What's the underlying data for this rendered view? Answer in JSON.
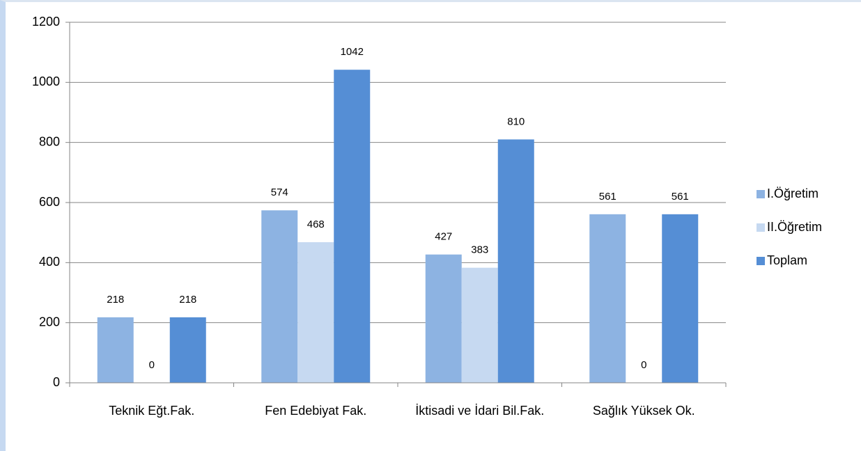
{
  "chart_data": {
    "type": "bar",
    "categories": [
      "Teknik Eğt.Fak.",
      "Fen Edebiyat Fak.",
      "İktisadi ve İdari Bil.Fak.",
      "Sağlık Yüksek Ok."
    ],
    "series": [
      {
        "name": "I.Öğretim",
        "color": "#8db3e2",
        "values": [
          218,
          574,
          427,
          561
        ]
      },
      {
        "name": "II.Öğretim",
        "color": "#c6d9f1",
        "values": [
          0,
          468,
          383,
          0
        ]
      },
      {
        "name": "Toplam",
        "color": "#558ed5",
        "values": [
          218,
          1042,
          810,
          561
        ]
      }
    ],
    "ylim": [
      0,
      1200
    ],
    "yticks": [
      0,
      200,
      400,
      600,
      800,
      1000,
      1200
    ],
    "grid": true,
    "legend": "right"
  }
}
